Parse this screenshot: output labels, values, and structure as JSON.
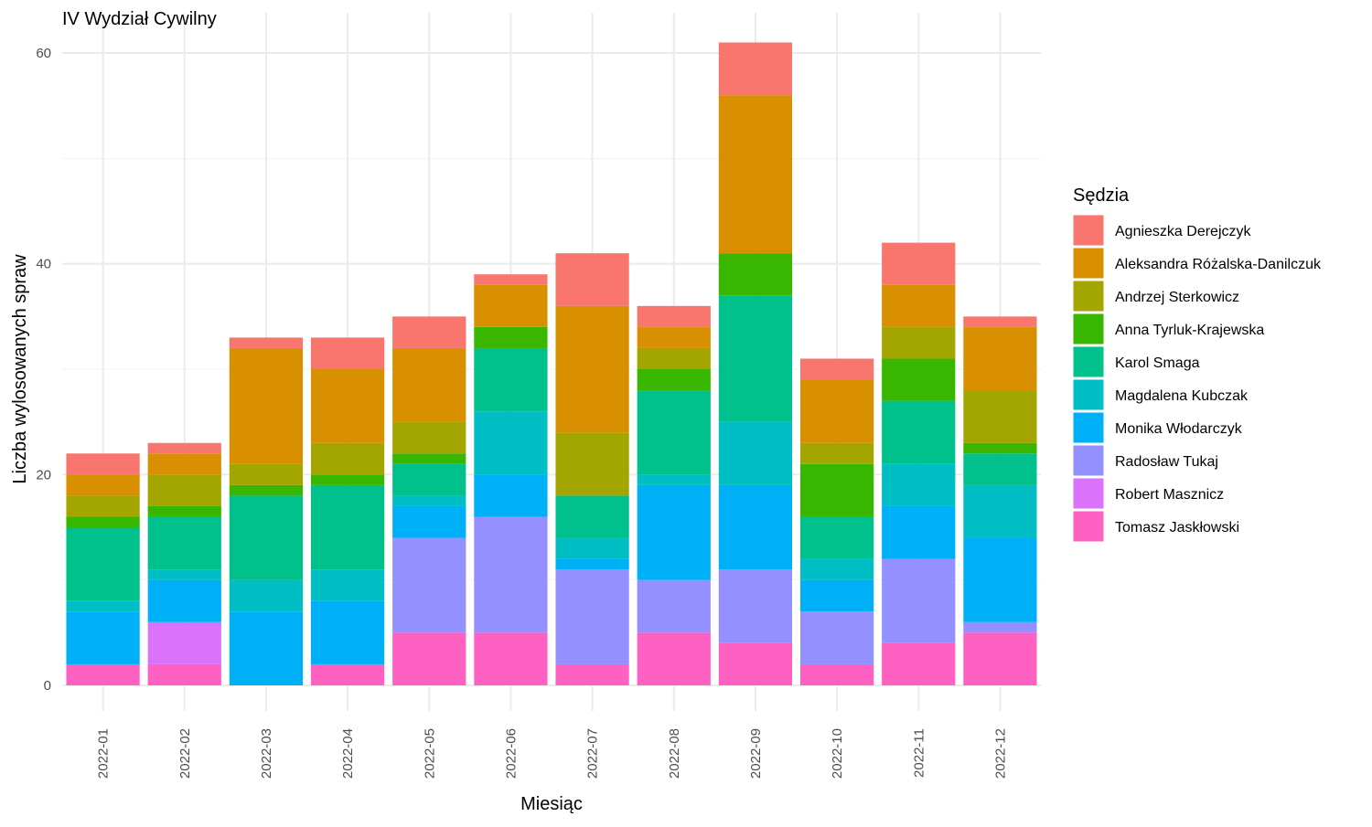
{
  "chart_data": {
    "type": "bar",
    "stacked": true,
    "title": "IV Wydział Cywilny",
    "xlabel": "Miesiąc",
    "ylabel": "Liczba wylosowanych spraw",
    "legend_title": "Sędzia",
    "legend_position": "right",
    "grid": true,
    "ylim": [
      0,
      61
    ],
    "yticks": [
      0,
      20,
      40,
      60
    ],
    "categories": [
      "2022-01",
      "2022-02",
      "2022-03",
      "2022-04",
      "2022-05",
      "2022-06",
      "2022-07",
      "2022-08",
      "2022-09",
      "2022-10",
      "2022-11",
      "2022-12"
    ],
    "series": [
      {
        "name": "Tomasz Jaskłowski",
        "color": "#FF61C3",
        "values": [
          2,
          2,
          0,
          2,
          5,
          5,
          2,
          5,
          4,
          2,
          4,
          5
        ]
      },
      {
        "name": "Robert Masznicz",
        "color": "#DB72FB",
        "values": [
          0,
          4,
          0,
          0,
          0,
          0,
          0,
          0,
          0,
          0,
          0,
          0
        ]
      },
      {
        "name": "Radosław Tukaj",
        "color": "#9590FF",
        "values": [
          0,
          0,
          0,
          0,
          9,
          11,
          9,
          5,
          7,
          5,
          8,
          1
        ]
      },
      {
        "name": "Monika Włodarczyk",
        "color": "#00B0F6",
        "values": [
          5,
          4,
          7,
          6,
          3,
          4,
          1,
          9,
          8,
          3,
          5,
          8
        ]
      },
      {
        "name": "Magdalena Kubczak",
        "color": "#00BFC4",
        "values": [
          1,
          1,
          3,
          3,
          1,
          6,
          2,
          1,
          6,
          2,
          4,
          5
        ]
      },
      {
        "name": "Karol Smaga",
        "color": "#00C08B",
        "values": [
          7,
          5,
          8,
          8,
          3,
          6,
          4,
          8,
          12,
          4,
          6,
          3
        ]
      },
      {
        "name": "Anna Tyrluk-Krajewska",
        "color": "#39B600",
        "values": [
          1,
          1,
          1,
          1,
          1,
          2,
          0,
          2,
          4,
          5,
          4,
          1
        ]
      },
      {
        "name": "Andrzej Sterkowicz",
        "color": "#A3A500",
        "values": [
          2,
          3,
          2,
          3,
          3,
          0,
          6,
          2,
          0,
          2,
          3,
          5
        ]
      },
      {
        "name": "Aleksandra Różalska-Danilczuk",
        "color": "#D89000",
        "values": [
          2,
          2,
          11,
          7,
          7,
          4,
          12,
          2,
          15,
          6,
          4,
          6
        ]
      },
      {
        "name": "Agnieszka Derejczyk",
        "color": "#F8766D",
        "values": [
          2,
          1,
          1,
          3,
          3,
          1,
          5,
          2,
          5,
          2,
          4,
          1
        ]
      }
    ],
    "legend_order": [
      "Agnieszka Derejczyk",
      "Aleksandra Różalska-Danilczuk",
      "Andrzej Sterkowicz",
      "Anna Tyrluk-Krajewska",
      "Karol Smaga",
      "Magdalena Kubczak",
      "Monika Włodarczyk",
      "Radosław Tukaj",
      "Robert Masznicz",
      "Tomasz Jaskłowski"
    ]
  }
}
